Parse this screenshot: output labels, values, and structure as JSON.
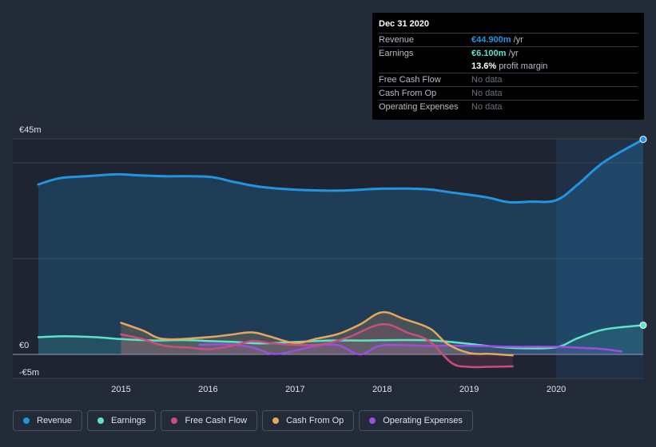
{
  "tooltip": {
    "date": "Dec 31 2020",
    "revenue_label": "Revenue",
    "revenue_value": "€44.900m",
    "revenue_unit": "/yr",
    "earnings_label": "Earnings",
    "earnings_value": "€6.100m",
    "earnings_unit": "/yr",
    "margin_value": "13.6%",
    "margin_text": "profit margin",
    "fcf_label": "Free Cash Flow",
    "fcf_value": "No data",
    "cfo_label": "Cash From Op",
    "cfo_value": "No data",
    "opex_label": "Operating Expenses",
    "opex_value": "No data"
  },
  "legend": {
    "revenue": "Revenue",
    "earnings": "Earnings",
    "fcf": "Free Cash Flow",
    "cfo": "Cash From Op",
    "opex": "Operating Expenses"
  },
  "colors": {
    "revenue": "#2394df",
    "earnings": "#5ee3c9",
    "fcf": "#c84f7e",
    "cfo": "#e6a85c",
    "opex": "#9b4ee0"
  },
  "chart_data": {
    "type": "line",
    "title": "",
    "xlabel": "",
    "ylabel": "",
    "ylim": [
      -5,
      45
    ],
    "y_ticks": [
      {
        "value": 45,
        "label": "€45m"
      },
      {
        "value": 0,
        "label": "€0"
      },
      {
        "value": -5,
        "label": "-€5m"
      }
    ],
    "x_ticks": [
      "2015",
      "2016",
      "2017",
      "2018",
      "2019",
      "2020"
    ],
    "x_range": [
      2014.05,
      2021.0
    ],
    "highlight_start": 2020.0,
    "series": [
      {
        "key": "revenue",
        "name": "Revenue",
        "points": [
          [
            2014.05,
            35.5
          ],
          [
            2014.3,
            36.8
          ],
          [
            2014.6,
            37.2
          ],
          [
            2014.95,
            37.6
          ],
          [
            2015.2,
            37.4
          ],
          [
            2015.5,
            37.2
          ],
          [
            2016.0,
            37.1
          ],
          [
            2016.3,
            36.0
          ],
          [
            2016.6,
            35.0
          ],
          [
            2017.0,
            34.4
          ],
          [
            2017.5,
            34.2
          ],
          [
            2018.0,
            34.6
          ],
          [
            2018.5,
            34.5
          ],
          [
            2018.8,
            33.8
          ],
          [
            2019.2,
            32.8
          ],
          [
            2019.45,
            31.8
          ],
          [
            2019.7,
            31.9
          ],
          [
            2020.0,
            32.2
          ],
          [
            2020.25,
            35.5
          ],
          [
            2020.55,
            40.2
          ],
          [
            2021.0,
            44.9
          ]
        ]
      },
      {
        "key": "earnings",
        "name": "Earnings",
        "points": [
          [
            2014.05,
            3.6
          ],
          [
            2014.35,
            3.8
          ],
          [
            2014.7,
            3.6
          ],
          [
            2015.0,
            3.2
          ],
          [
            2015.4,
            2.9
          ],
          [
            2015.7,
            3.0
          ],
          [
            2016.0,
            2.8
          ],
          [
            2016.3,
            2.6
          ],
          [
            2016.6,
            2.3
          ],
          [
            2017.0,
            2.6
          ],
          [
            2017.4,
            2.9
          ],
          [
            2017.8,
            2.9
          ],
          [
            2018.2,
            3.0
          ],
          [
            2018.6,
            2.9
          ],
          [
            2019.0,
            2.2
          ],
          [
            2019.3,
            1.6
          ],
          [
            2019.6,
            1.3
          ],
          [
            2020.0,
            1.5
          ],
          [
            2020.25,
            3.4
          ],
          [
            2020.55,
            5.2
          ],
          [
            2021.0,
            6.1
          ]
        ]
      },
      {
        "key": "fcf",
        "name": "Free Cash Flow",
        "points": [
          [
            2015.0,
            4.2
          ],
          [
            2015.25,
            3.2
          ],
          [
            2015.5,
            1.8
          ],
          [
            2015.8,
            1.4
          ],
          [
            2016.0,
            1.1
          ],
          [
            2016.25,
            1.7
          ],
          [
            2016.5,
            2.8
          ],
          [
            2016.7,
            2.4
          ],
          [
            2017.0,
            2.0
          ],
          [
            2017.3,
            2.1
          ],
          [
            2017.6,
            3.5
          ],
          [
            2018.0,
            6.3
          ],
          [
            2018.3,
            4.5
          ],
          [
            2018.55,
            2.7
          ],
          [
            2018.8,
            -1.8
          ],
          [
            2019.0,
            -2.6
          ],
          [
            2019.2,
            -2.6
          ],
          [
            2019.5,
            -2.5
          ]
        ]
      },
      {
        "key": "cfo",
        "name": "Cash From Op",
        "points": [
          [
            2015.0,
            6.6
          ],
          [
            2015.25,
            5.0
          ],
          [
            2015.5,
            3.2
          ],
          [
            2016.0,
            3.6
          ],
          [
            2016.25,
            4.1
          ],
          [
            2016.5,
            4.6
          ],
          [
            2016.7,
            3.8
          ],
          [
            2017.0,
            2.4
          ],
          [
            2017.25,
            3.3
          ],
          [
            2017.5,
            4.3
          ],
          [
            2017.75,
            6.3
          ],
          [
            2018.0,
            8.8
          ],
          [
            2018.25,
            7.4
          ],
          [
            2018.55,
            5.4
          ],
          [
            2018.75,
            2.2
          ],
          [
            2019.0,
            0.3
          ],
          [
            2019.25,
            0.1
          ],
          [
            2019.5,
            -0.2
          ]
        ]
      },
      {
        "key": "opex",
        "name": "Operating Expenses",
        "points": [
          [
            2015.9,
            2.0
          ],
          [
            2016.2,
            2.1
          ],
          [
            2016.5,
            1.5
          ],
          [
            2016.75,
            0.1
          ],
          [
            2017.0,
            0.8
          ],
          [
            2017.25,
            1.8
          ],
          [
            2017.5,
            1.9
          ],
          [
            2017.75,
            0.0
          ],
          [
            2018.0,
            1.9
          ],
          [
            2018.5,
            1.8
          ],
          [
            2019.0,
            1.8
          ],
          [
            2019.5,
            1.6
          ],
          [
            2020.0,
            1.6
          ],
          [
            2020.25,
            1.4
          ],
          [
            2020.55,
            1.1
          ],
          [
            2020.75,
            0.6
          ]
        ]
      }
    ]
  }
}
